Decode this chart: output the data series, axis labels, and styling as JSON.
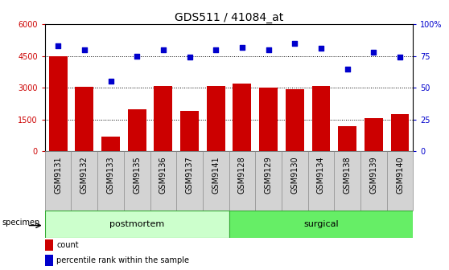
{
  "title": "GDS511 / 41084_at",
  "categories": [
    "GSM9131",
    "GSM9132",
    "GSM9133",
    "GSM9135",
    "GSM9136",
    "GSM9137",
    "GSM9141",
    "GSM9128",
    "GSM9129",
    "GSM9130",
    "GSM9134",
    "GSM9138",
    "GSM9139",
    "GSM9140"
  ],
  "counts": [
    4500,
    3050,
    700,
    2000,
    3100,
    1900,
    3100,
    3200,
    3000,
    2950,
    3100,
    1200,
    1550,
    1750
  ],
  "percentiles": [
    83,
    80,
    55,
    75,
    80,
    74,
    80,
    82,
    80,
    85,
    81,
    65,
    78,
    74
  ],
  "bar_color": "#cc0000",
  "dot_color": "#0000cc",
  "ylim_left": [
    0,
    6000
  ],
  "ylim_right": [
    0,
    100
  ],
  "yticks_left": [
    0,
    1500,
    3000,
    4500,
    6000
  ],
  "ytick_labels_left": [
    "0",
    "1500",
    "3000",
    "4500",
    "6000"
  ],
  "yticks_right": [
    0,
    25,
    50,
    75,
    100
  ],
  "ytick_labels_right": [
    "0",
    "25",
    "50",
    "75",
    "100%"
  ],
  "n_postmortem": 7,
  "n_surgical": 7,
  "group_label_postmortem": "postmortem",
  "group_label_surgical": "surgical",
  "specimen_label": "specimen",
  "legend_count": "count",
  "legend_percentile": "percentile rank within the sample",
  "bg_color": "#ffffff",
  "xtick_bg_color": "#d3d3d3",
  "postmortem_color": "#ccffcc",
  "surgical_color": "#66ee66",
  "title_fontsize": 10,
  "axis_fontsize": 7,
  "label_fontsize": 8,
  "group_fontsize": 8
}
